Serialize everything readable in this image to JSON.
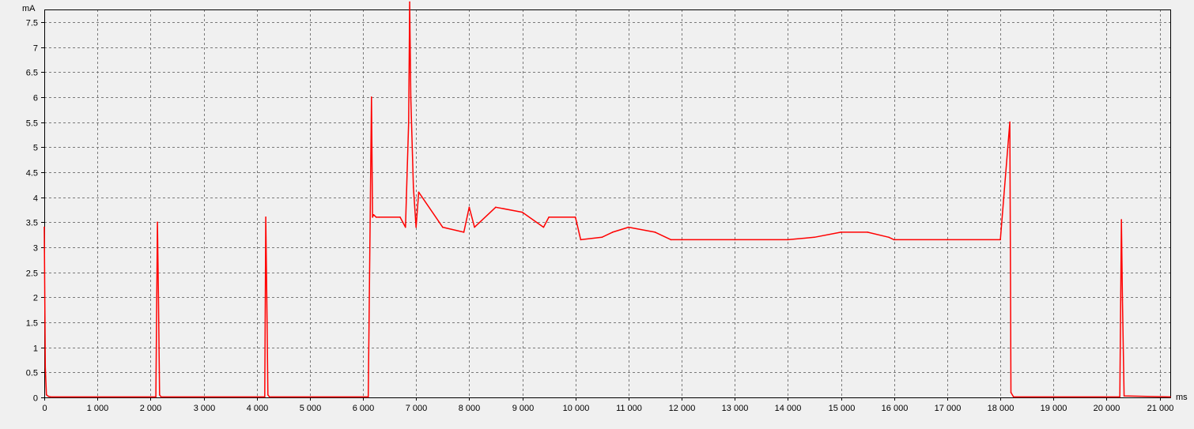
{
  "chart_data": {
    "type": "line",
    "ylabel": "mA",
    "xlabel": "ms",
    "xlim": [
      0,
      21200
    ],
    "ylim": [
      0,
      7.75
    ],
    "grid": true,
    "colors": {
      "series": "#ff0000",
      "plot_bg": "#f0f0f0",
      "grid": "#7a7a7a",
      "axis": "#000000"
    },
    "x_ticks": [
      0,
      1000,
      2000,
      3000,
      4000,
      5000,
      6000,
      7000,
      8000,
      9000,
      10000,
      11000,
      12000,
      13000,
      14000,
      15000,
      16000,
      17000,
      18000,
      19000,
      20000,
      21000
    ],
    "x_tick_labels": [
      "0",
      "1 000",
      "2 000",
      "3 000",
      "4 000",
      "5 000",
      "6 000",
      "7 000",
      "8 000",
      "9 000",
      "10 000",
      "11 000",
      "12 000",
      "13 000",
      "14 000",
      "15 000",
      "16 000",
      "17 000",
      "18 000",
      "19 000",
      "20 000",
      "21 000"
    ],
    "y_ticks": [
      0,
      0.5,
      1,
      1.5,
      2,
      2.5,
      3,
      3.5,
      4,
      4.5,
      5,
      5.5,
      6,
      6.5,
      7,
      7.5
    ],
    "y_tick_labels": [
      "0",
      "0.5",
      "1",
      "1.5",
      "2",
      "2.5",
      "3",
      "3.5",
      "4",
      "4.5",
      "5",
      "5.5",
      "6",
      "6.5",
      "7",
      "7.5"
    ],
    "series": [
      {
        "x": [
          0,
          20,
          40,
          80,
          120,
          2100,
          2130,
          2150,
          2170,
          2200,
          4150,
          4170,
          4190,
          4210,
          4240,
          6100,
          6160,
          6180,
          6200,
          6250,
          6300,
          6700,
          6800,
          6860,
          6880,
          6900,
          6950,
          7000,
          7050,
          7500,
          7900,
          8000,
          8100,
          8500,
          9000,
          9400,
          9500,
          10000,
          10100,
          10500,
          10700,
          11000,
          11500,
          11800,
          12000,
          13000,
          14000,
          14500,
          15000,
          15500,
          15900,
          16000,
          17000,
          18000,
          18180,
          18200,
          18250,
          20250,
          20280,
          20300,
          20330,
          21200
        ],
        "y": [
          3.4,
          0.6,
          0.05,
          0.02,
          0.01,
          0.01,
          3.5,
          2.0,
          0.05,
          0.01,
          0.01,
          3.6,
          2.0,
          0.05,
          0.01,
          0.01,
          6.0,
          3.6,
          3.65,
          3.6,
          3.6,
          3.6,
          3.4,
          5.5,
          7.9,
          6.0,
          4.2,
          3.4,
          4.1,
          3.4,
          3.3,
          3.8,
          3.4,
          3.8,
          3.7,
          3.4,
          3.6,
          3.6,
          3.15,
          3.2,
          3.3,
          3.4,
          3.3,
          3.15,
          3.15,
          3.15,
          3.15,
          3.2,
          3.3,
          3.3,
          3.2,
          3.15,
          3.15,
          3.15,
          5.5,
          0.1,
          0.01,
          0.01,
          3.55,
          1.95,
          0.03,
          0.01
        ]
      }
    ]
  }
}
